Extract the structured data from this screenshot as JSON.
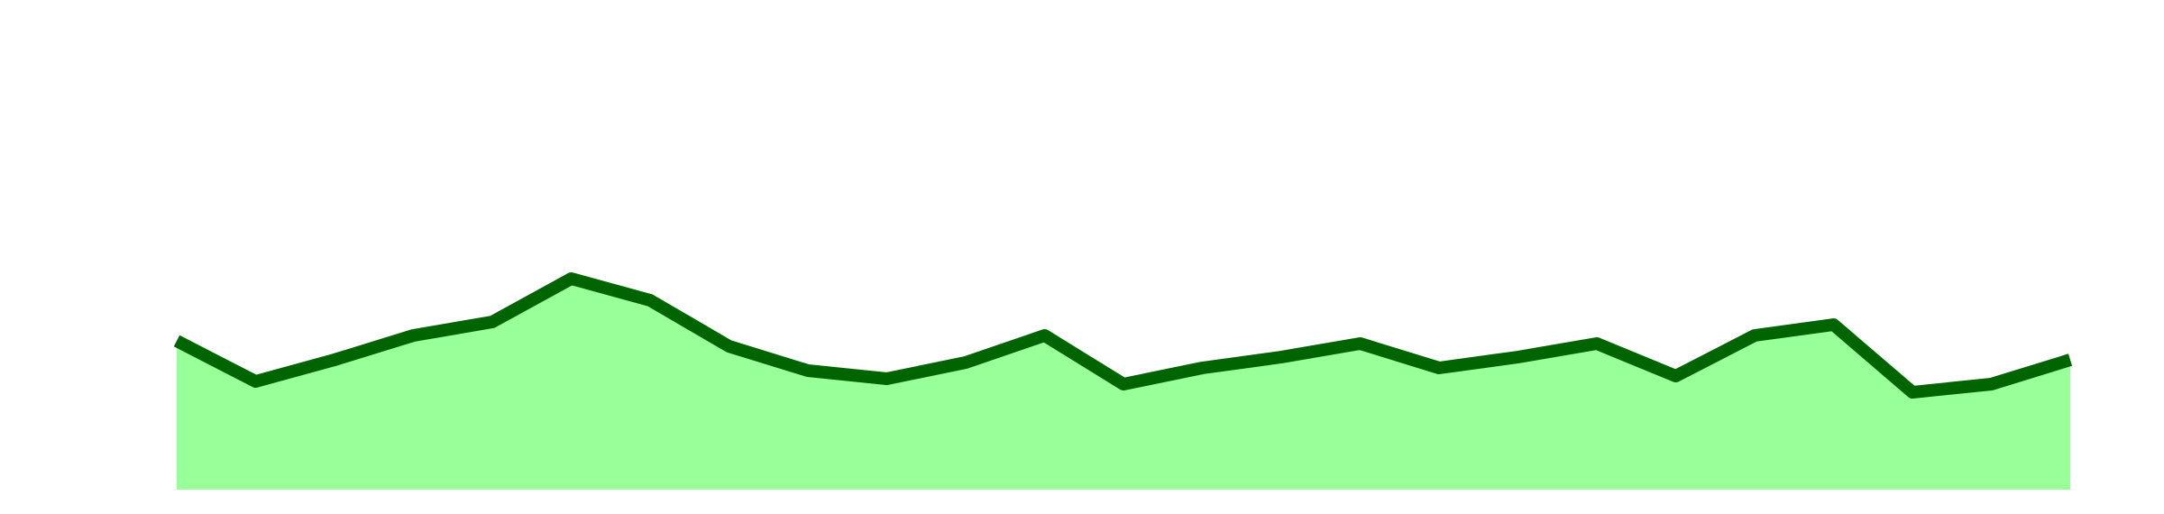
{
  "chart_data": {
    "type": "area",
    "x": [
      1,
      2,
      3,
      4,
      5,
      6,
      7,
      8,
      9,
      10,
      11,
      12,
      13,
      14,
      15,
      16,
      17,
      18,
      19,
      20,
      21,
      22,
      23,
      24,
      25
    ],
    "series": [
      {
        "values": [
          55,
          40,
          48,
          57,
          62,
          78,
          70,
          53,
          44,
          41,
          47,
          57,
          39,
          45,
          49,
          54,
          45,
          49,
          54,
          42,
          57,
          61,
          36,
          39,
          48
        ]
      }
    ],
    "ylim": [
      0,
      180
    ],
    "grid": false,
    "legend": "none",
    "colors": {
      "line": "#006400",
      "fill": "#99ff99"
    }
  }
}
